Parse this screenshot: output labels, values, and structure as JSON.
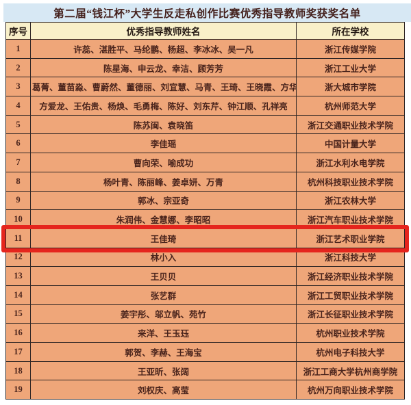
{
  "title": "第二届“钱江杯”大学生反走私创作比赛优秀指导教师奖获奖名单",
  "table": {
    "headers": [
      "序号",
      "优秀指导教师姓名",
      "所在学校"
    ],
    "highlighted_row_no": "11",
    "rows": [
      {
        "no": "1",
        "teachers": "许蕊、湛胜平、马纶鹏、杨超、李冰冰、吴一凡",
        "school": "浙江传媒学院"
      },
      {
        "no": "2",
        "teachers": "陈星海、申云龙、幸洁、顾芳芳",
        "school": "浙江工业大学"
      },
      {
        "no": "3",
        "teachers": "葛菁、董苗淼、曹蔚然、董德丽、刘宜慧、马青、王琦、王晓霞、方华",
        "school": "浙大城市学院"
      },
      {
        "no": "4",
        "teachers": "方爱龙、王佑贵、杨焕、毛勇梅、陈好、刘东芹、钟江顺、孔祥亮",
        "school": "杭州师范大学"
      },
      {
        "no": "5",
        "teachers": "陈苏闽、袁晓笛",
        "school": "浙江交通职业技术学院"
      },
      {
        "no": "6",
        "teachers": "李佳瑶",
        "school": "中国计量大学"
      },
      {
        "no": "7",
        "teachers": "曹向荣、喻成功",
        "school": "浙江水利水电学院"
      },
      {
        "no": "8",
        "teachers": "杨叶青、陈丽峰、姜卓妍、万青",
        "school": "杭州科技职业技术学院"
      },
      {
        "no": "9",
        "teachers": "郭冰、宗亚奇",
        "school": "浙江农林大学"
      },
      {
        "no": "10",
        "teachers": "朱润伟、金慧娜、李昭昭",
        "school": "浙江汽车职业技术学院"
      },
      {
        "no": "11",
        "teachers": "王佳琦",
        "school": "浙江艺术职业学院"
      },
      {
        "no": "12",
        "teachers": "林小入",
        "school": "浙江科技大学"
      },
      {
        "no": "13",
        "teachers": "王贝贝",
        "school": "浙江经济职业技术学院"
      },
      {
        "no": "14",
        "teachers": "张艺群",
        "school": "浙江工贸职业技术学院"
      },
      {
        "no": "15",
        "teachers": "姜宇彤、邬立帆、苑竹",
        "school": "浙江长征职业技术学院"
      },
      {
        "no": "16",
        "teachers": "来洋、王玉珏",
        "school": "杭州职业技术学院"
      },
      {
        "no": "17",
        "teachers": "郭贺、李赫、王海宝",
        "school": "杭州电子科技大学"
      },
      {
        "no": "18",
        "teachers": "王亚昕、张阔",
        "school": "浙江工商大学杭州商学院"
      },
      {
        "no": "19",
        "teachers": "刘权庆、高莹",
        "school": "杭州万向职业技术学院"
      }
    ]
  },
  "colors": {
    "title_bg": "#d7e8f4",
    "title_fg": "#44201c",
    "header_bg": "#f9f0c9",
    "row_bg": "#efa679",
    "cell_fg": "#4a241c",
    "accent_red": "#e5251d",
    "border": "#2e2524"
  }
}
